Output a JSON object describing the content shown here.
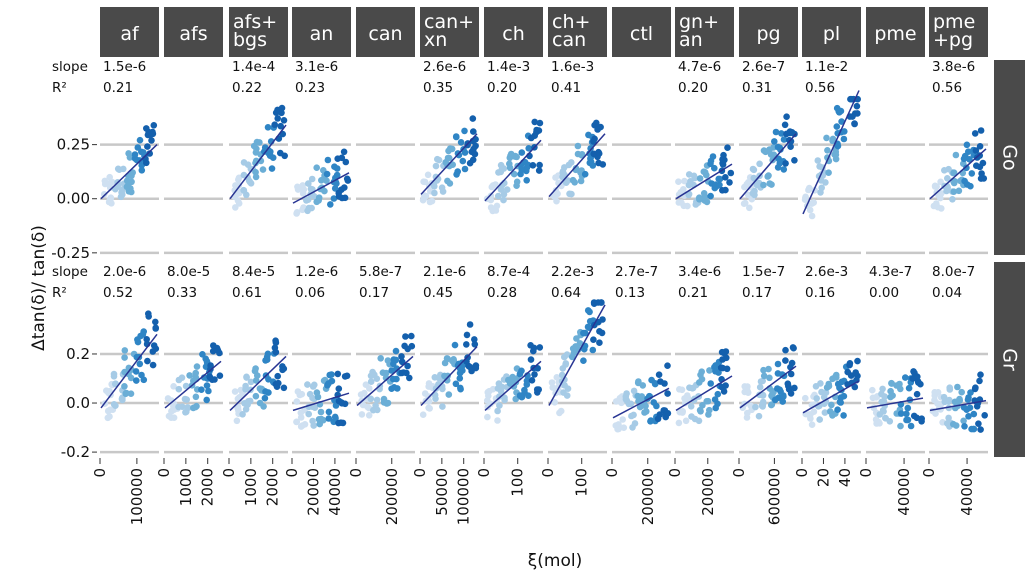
{
  "chart_data": {
    "type": "scatter",
    "xlabel": "ξ(mol)",
    "ylabel": "Δtan(δ)/ tan(δ)",
    "slope_label": "slope",
    "r2_label": "R²",
    "rows": [
      "Go",
      "Gr"
    ],
    "columns": [
      {
        "name": "af",
        "label": [
          "af"
        ],
        "xlim": [
          0,
          160000
        ],
        "xticks": [
          "0",
          "100000"
        ],
        "xtick_values": [
          0,
          100000
        ]
      },
      {
        "name": "afs",
        "label": [
          "afs"
        ],
        "xlim": [
          0,
          2700
        ],
        "xticks": [
          "0",
          "1000",
          "2000"
        ],
        "xtick_values": [
          0,
          1000,
          2000
        ]
      },
      {
        "name": "afs+bgs",
        "label": [
          "afs+",
          "bgs"
        ],
        "xlim": [
          0,
          2700
        ],
        "xticks": [
          "0",
          "1000",
          "2000"
        ],
        "xtick_values": [
          0,
          1000,
          2000
        ]
      },
      {
        "name": "an",
        "label": [
          "an"
        ],
        "xlim": [
          0,
          55000
        ],
        "xticks": [
          "0",
          "20000",
          "40000"
        ],
        "xtick_values": [
          0,
          20000,
          40000
        ]
      },
      {
        "name": "can",
        "label": [
          "can"
        ],
        "xlim": [
          0,
          330000
        ],
        "xticks": [
          "0",
          "200000"
        ],
        "xtick_values": [
          0,
          200000
        ]
      },
      {
        "name": "can+xn",
        "label": [
          "can+",
          "xn"
        ],
        "xlim": [
          0,
          135000
        ],
        "xticks": [
          "0",
          "50000",
          "100000"
        ],
        "xtick_values": [
          0,
          50000,
          100000
        ]
      },
      {
        "name": "ch",
        "label": [
          "ch"
        ],
        "xlim": [
          0,
          175
        ],
        "xticks": [
          "0",
          "100"
        ],
        "xtick_values": [
          0,
          100
        ]
      },
      {
        "name": "ch+can",
        "label": [
          "ch+",
          "can"
        ],
        "xlim": [
          0,
          175
        ],
        "xticks": [
          "0",
          "100"
        ],
        "xtick_values": [
          0,
          100
        ]
      },
      {
        "name": "ctl",
        "label": [
          "ctl"
        ],
        "xlim": [
          0,
          330000
        ],
        "xticks": [
          "0",
          "200000"
        ],
        "xtick_values": [
          0,
          200000
        ]
      },
      {
        "name": "gn+an",
        "label": [
          "gn+",
          "an"
        ],
        "xlim": [
          0,
          36000
        ],
        "xticks": [
          "0",
          "20000"
        ],
        "xtick_values": [
          0,
          20000
        ]
      },
      {
        "name": "pg",
        "label": [
          "pg"
        ],
        "xlim": [
          0,
          1000000
        ],
        "xticks": [
          "0",
          "600000"
        ],
        "xtick_values": [
          0,
          600000
        ]
      },
      {
        "name": "pl",
        "label": [
          "pl"
        ],
        "xlim": [
          0,
          55
        ],
        "xticks": [
          "0",
          "20",
          "40"
        ],
        "xtick_values": [
          0,
          20,
          40
        ]
      },
      {
        "name": "pme",
        "label": [
          "pme"
        ],
        "xlim": [
          0,
          62000
        ],
        "xticks": [
          "0",
          "40000"
        ],
        "xtick_values": [
          0,
          40000
        ]
      },
      {
        "name": "pme+pg",
        "label": [
          "pme",
          "+pg"
        ],
        "xlim": [
          0,
          62000
        ],
        "xticks": [
          "0",
          "40000"
        ],
        "xtick_values": [
          0,
          40000
        ]
      }
    ],
    "panels": {
      "Go": {
        "ylim": [
          -0.26,
          0.47
        ],
        "yticks": [
          -0.25,
          0.0,
          0.25
        ],
        "ytick_labels": [
          "-0.25",
          "0.00",
          "0.25"
        ],
        "slope": [
          "1.5e-6",
          "",
          "1.4e-4",
          "3.1e-6",
          "",
          "2.6e-6",
          "1.4e-3",
          "1.6e-3",
          "",
          "4.7e-6",
          "2.6e-7",
          "1.1e-2",
          "",
          "3.8e-6"
        ],
        "r2": [
          "0.21",
          "",
          "0.22",
          "0.23",
          "",
          "0.35",
          "0.20",
          "0.41",
          "",
          "0.20",
          "0.31",
          "0.56",
          "",
          "0.56"
        ],
        "has_data": [
          true,
          false,
          true,
          true,
          false,
          true,
          true,
          true,
          false,
          true,
          true,
          true,
          false,
          true
        ],
        "fit": [
          [
            0.0,
            0.25
          ],
          null,
          [
            0.0,
            0.34
          ],
          [
            -0.02,
            0.12
          ],
          null,
          [
            0.02,
            0.3
          ],
          [
            -0.01,
            0.27
          ],
          [
            0.01,
            0.3
          ],
          null,
          [
            0.0,
            0.16
          ],
          [
            0.0,
            0.3
          ],
          [
            -0.07,
            0.5
          ],
          null,
          [
            0.0,
            0.23
          ]
        ]
      },
      "Gr": {
        "ylim": [
          -0.22,
          0.42
        ],
        "yticks": [
          -0.2,
          0.0,
          0.2
        ],
        "ytick_labels": [
          "-0.2",
          "0.0",
          "0.2"
        ],
        "slope": [
          "2.0e-6",
          "8.0e-5",
          "8.4e-5",
          "1.2e-6",
          "5.8e-7",
          "2.1e-6",
          "8.7e-4",
          "2.2e-3",
          "2.7e-7",
          "3.4e-6",
          "1.5e-7",
          "2.6e-3",
          "4.3e-7",
          "8.0e-7"
        ],
        "r2": [
          "0.52",
          "0.33",
          "0.61",
          "0.06",
          "0.17",
          "0.45",
          "0.28",
          "0.64",
          "0.13",
          "0.21",
          "0.17",
          "0.16",
          "0.00",
          "0.04"
        ],
        "has_data": [
          true,
          true,
          true,
          true,
          true,
          true,
          true,
          true,
          true,
          true,
          true,
          true,
          true,
          true
        ],
        "fit": [
          [
            -0.02,
            0.28
          ],
          [
            -0.02,
            0.17
          ],
          [
            -0.03,
            0.19
          ],
          [
            -0.03,
            0.04
          ],
          [
            -0.01,
            0.19
          ],
          [
            -0.01,
            0.23
          ],
          [
            -0.03,
            0.17
          ],
          [
            -0.01,
            0.4
          ],
          [
            -0.06,
            0.06
          ],
          [
            -0.03,
            0.11
          ],
          [
            -0.02,
            0.15
          ],
          [
            -0.04,
            0.09
          ],
          [
            -0.02,
            0.02
          ],
          [
            -0.03,
            0.01
          ]
        ]
      }
    },
    "colors": {
      "strip": "#4a4a4a",
      "gridline": "#c8c8c8",
      "fit_line": "#283593",
      "point_shades": [
        "#cfe0f1",
        "#a6cbe6",
        "#6baed6",
        "#2f85c5",
        "#1460ad"
      ]
    }
  }
}
